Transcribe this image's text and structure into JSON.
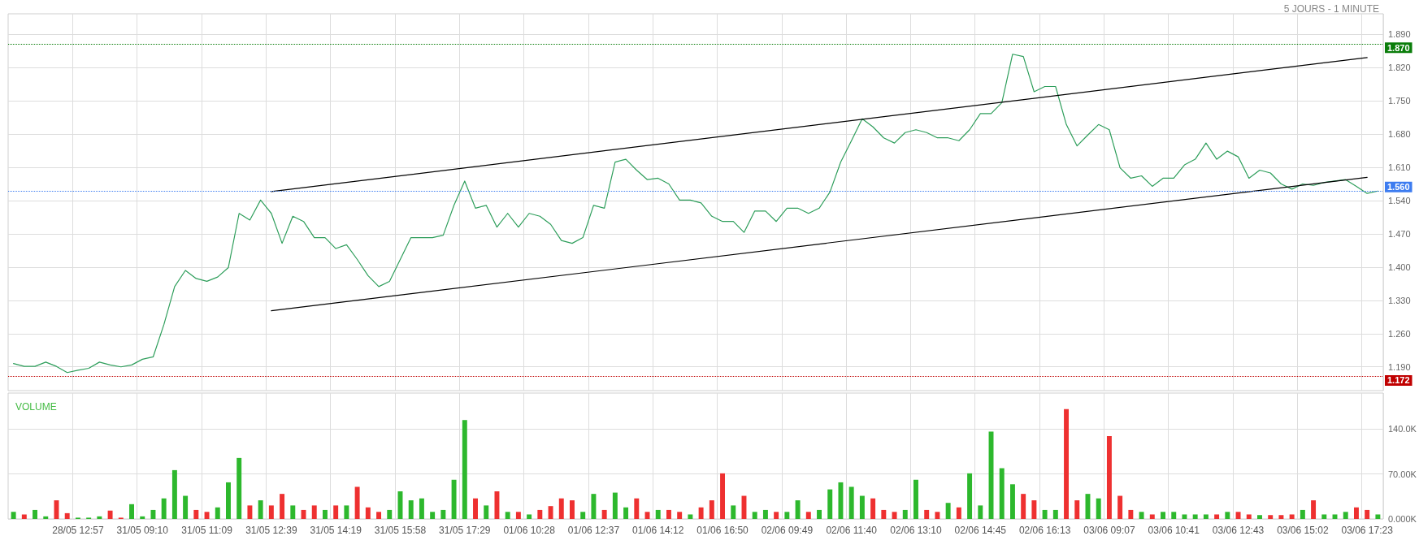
{
  "chart_data": [
    {
      "type": "line",
      "subtitle": "5 JOURS - 1 MINUTE",
      "ylim": [
        1.14,
        1.933
      ],
      "categories": [
        null,
        null,
        null,
        null,
        null,
        null,
        "28/05 12:57",
        null,
        null,
        null,
        null,
        null,
        "31/05 09:10",
        null,
        null,
        null,
        null,
        null,
        "31/05 11:09",
        null,
        null,
        null,
        null,
        null,
        "31/05 12:39",
        null,
        null,
        null,
        null,
        null,
        "31/05 14:19",
        null,
        null,
        null,
        null,
        null,
        "31/05 15:58",
        null,
        null,
        null,
        null,
        null,
        "31/05 17:29",
        null,
        null,
        null,
        null,
        null,
        "01/06 10:28",
        null,
        null,
        null,
        null,
        null,
        "01/06 12:37",
        null,
        null,
        null,
        null,
        null,
        "01/06 14:12",
        null,
        null,
        null,
        null,
        null,
        "01/06 16:50",
        null,
        null,
        null,
        null,
        null,
        "02/06 09:49",
        null,
        null,
        null,
        null,
        null,
        "02/06 11:40",
        null,
        null,
        null,
        null,
        null,
        "02/06 13:10",
        null,
        null,
        null,
        null,
        null,
        "02/06 14:45",
        null,
        null,
        null,
        null,
        null,
        "02/06 16:13",
        null,
        null,
        null,
        null,
        null,
        "03/06 09:07",
        null,
        null,
        null,
        null,
        null,
        "03/06 10:41",
        null,
        null,
        null,
        null,
        null,
        "03/06 12:43",
        null,
        null,
        null,
        null,
        null,
        "03/06 15:02",
        null,
        null,
        null,
        null,
        null,
        "03/06 17:23",
        null
      ],
      "yticks": [
        {
          "value": 1.19,
          "label": "1.190"
        },
        {
          "value": 1.26,
          "label": "1.260"
        },
        {
          "value": 1.33,
          "label": "1.330"
        },
        {
          "value": 1.4,
          "label": "1.400"
        },
        {
          "value": 1.47,
          "label": "1.470"
        },
        {
          "value": 1.54,
          "label": "1.540"
        },
        {
          "value": 1.61,
          "label": "1.610"
        },
        {
          "value": 1.68,
          "label": "1.680"
        },
        {
          "value": 1.75,
          "label": "1.750"
        },
        {
          "value": 1.82,
          "label": "1.820"
        },
        {
          "value": 1.89,
          "label": "1.890"
        }
      ],
      "tick_labels": "y",
      "grid": true,
      "series": [
        {
          "color": "#2e9e5b",
          "values": [
            1.197,
            1.191,
            1.191,
            1.2,
            1.191,
            1.178,
            1.183,
            1.187,
            1.2,
            1.194,
            1.19,
            1.194,
            1.206,
            1.211,
            1.279,
            1.359,
            1.393,
            1.376,
            1.37,
            1.379,
            1.399,
            1.513,
            1.499,
            1.541,
            1.513,
            1.45,
            1.507,
            1.496,
            1.462,
            1.462,
            1.439,
            1.447,
            1.416,
            1.382,
            1.359,
            1.37,
            1.416,
            1.462,
            1.462,
            1.462,
            1.467,
            1.53,
            1.581,
            1.524,
            1.53,
            1.484,
            1.513,
            1.484,
            1.513,
            1.507,
            1.49,
            1.456,
            1.45,
            1.462,
            1.53,
            1.524,
            1.621,
            1.627,
            1.604,
            1.584,
            1.587,
            1.575,
            1.541,
            1.541,
            1.535,
            1.507,
            1.496,
            1.496,
            1.473,
            1.518,
            1.518,
            1.496,
            1.524,
            1.524,
            1.513,
            1.524,
            1.558,
            1.621,
            1.666,
            1.712,
            1.695,
            1.672,
            1.661,
            1.683,
            1.689,
            1.683,
            1.672,
            1.672,
            1.666,
            1.689,
            1.723,
            1.723,
            1.746,
            1.848,
            1.843,
            1.769,
            1.78,
            1.78,
            1.7,
            1.655,
            1.678,
            1.7,
            1.689,
            1.609,
            1.587,
            1.592,
            1.57,
            1.587,
            1.587,
            1.615,
            1.627,
            1.661,
            1.627,
            1.644,
            1.632,
            1.587,
            1.604,
            1.598,
            1.575,
            1.564,
            1.575,
            1.572,
            1.578,
            1.581,
            1.584,
            1.57,
            1.555,
            1.56
          ]
        },
        {
          "color": "#000000",
          "x": [
            "31/05 12:39",
            "03/06 17:23"
          ],
          "values": [
            1.559,
            1.841
          ]
        },
        {
          "color": "#000000",
          "x": [
            "31/05 12:39",
            "03/06 17:23"
          ],
          "values": [
            1.308,
            1.589
          ]
        }
      ],
      "ref_lines": [
        {
          "axis": "y",
          "value": 1.87,
          "label": "1.870",
          "color": "#0a7d0a",
          "line_style": "dotted"
        },
        {
          "axis": "y",
          "value": 1.56,
          "label": "1.560",
          "color": "#3d7cf0",
          "line_style": "dotted"
        },
        {
          "axis": "y",
          "value": 1.172,
          "label": "1.172",
          "color": "#c00000",
          "line_style": "dotted"
        }
      ]
    },
    {
      "type": "bar",
      "title": "VOLUME",
      "ylim": [
        0,
        196000
      ],
      "categories": [
        null,
        null,
        null,
        null,
        null,
        null,
        "28/05 12:57",
        null,
        null,
        null,
        null,
        null,
        "31/05 09:10",
        null,
        null,
        null,
        null,
        null,
        "31/05 11:09",
        null,
        null,
        null,
        null,
        null,
        "31/05 12:39",
        null,
        null,
        null,
        null,
        null,
        "31/05 14:19",
        null,
        null,
        null,
        null,
        null,
        "31/05 15:58",
        null,
        null,
        null,
        null,
        null,
        "31/05 17:29",
        null,
        null,
        null,
        null,
        null,
        "01/06 10:28",
        null,
        null,
        null,
        null,
        null,
        "01/06 12:37",
        null,
        null,
        null,
        null,
        null,
        "01/06 14:12",
        null,
        null,
        null,
        null,
        null,
        "01/06 16:50",
        null,
        null,
        null,
        null,
        null,
        "02/06 09:49",
        null,
        null,
        null,
        null,
        null,
        "02/06 11:40",
        null,
        null,
        null,
        null,
        null,
        "02/06 13:10",
        null,
        null,
        null,
        null,
        null,
        "02/06 14:45",
        null,
        null,
        null,
        null,
        null,
        "02/06 16:13",
        null,
        null,
        null,
        null,
        null,
        "03/06 09:07",
        null,
        null,
        null,
        null,
        null,
        "03/06 10:41",
        null,
        null,
        null,
        null,
        null,
        "03/06 12:43",
        null,
        null,
        null,
        null,
        null,
        "03/06 15:02",
        null,
        null,
        null,
        null,
        null,
        "03/06 17:23",
        null
      ],
      "yticks": [
        {
          "value": 0,
          "label": "0.000K"
        },
        {
          "value": 70000,
          "label": "70.00K"
        },
        {
          "value": 140000,
          "label": "140.0K"
        }
      ],
      "grid": true,
      "values": [
        11000,
        7000,
        14000,
        4000,
        29000,
        9000,
        2000,
        2000,
        4000,
        13000,
        2000,
        23000,
        4000,
        14000,
        32000,
        76000,
        36000,
        14000,
        11000,
        18000,
        57000,
        95000,
        21000,
        29000,
        21000,
        39000,
        21000,
        14000,
        21000,
        14000,
        21000,
        21000,
        50000,
        18000,
        11000,
        14000,
        43000,
        29000,
        32000,
        11000,
        14000,
        61000,
        154000,
        32000,
        21000,
        43000,
        11000,
        11000,
        7000,
        14000,
        20000,
        32000,
        29000,
        11000,
        39000,
        14000,
        41000,
        18000,
        32000,
        11000,
        14000,
        14000,
        11000,
        7000,
        18000,
        29000,
        71000,
        21000,
        36000,
        11000,
        14000,
        11000,
        11000,
        29000,
        11000,
        14000,
        46000,
        57000,
        50000,
        36000,
        32000,
        14000,
        11000,
        14000,
        61000,
        14000,
        11000,
        25000,
        18000,
        71000,
        21000,
        136000,
        79000,
        54000,
        39000,
        29000,
        14000,
        14000,
        171000,
        29000,
        39000,
        32000,
        129000,
        36000,
        14000,
        11000,
        7000,
        11000,
        11000,
        7000,
        7000,
        7000,
        7000,
        11000,
        11000,
        7000,
        6000,
        6000,
        6000,
        7000,
        14000,
        29000,
        7000,
        7000,
        11000,
        18000,
        14000,
        7000
      ],
      "colors": [
        "#2db82d",
        "#ee3030",
        "#2db82d",
        "#2db82d",
        "#ee3030",
        "#ee3030",
        "#2db82d",
        "#2db82d",
        "#2db82d",
        "#ee3030",
        "#ee3030",
        "#2db82d",
        "#2db82d",
        "#2db82d",
        "#2db82d",
        "#2db82d",
        "#2db82d",
        "#ee3030",
        "#ee3030",
        "#2db82d",
        "#2db82d",
        "#2db82d",
        "#ee3030",
        "#2db82d",
        "#ee3030",
        "#ee3030",
        "#2db82d",
        "#ee3030",
        "#ee3030",
        "#2db82d",
        "#ee3030",
        "#2db82d",
        "#ee3030",
        "#ee3030",
        "#ee3030",
        "#2db82d",
        "#2db82d",
        "#2db82d",
        "#2db82d",
        "#2db82d",
        "#2db82d",
        "#2db82d",
        "#2db82d",
        "#ee3030",
        "#2db82d",
        "#ee3030",
        "#2db82d",
        "#ee3030",
        "#2db82d",
        "#ee3030",
        "#ee3030",
        "#ee3030",
        "#ee3030",
        "#2db82d",
        "#2db82d",
        "#ee3030",
        "#2db82d",
        "#2db82d",
        "#ee3030",
        "#ee3030",
        "#2db82d",
        "#ee3030",
        "#ee3030",
        "#2db82d",
        "#ee3030",
        "#ee3030",
        "#ee3030",
        "#2db82d",
        "#ee3030",
        "#2db82d",
        "#2db82d",
        "#ee3030",
        "#2db82d",
        "#2db82d",
        "#ee3030",
        "#2db82d",
        "#2db82d",
        "#2db82d",
        "#2db82d",
        "#2db82d",
        "#ee3030",
        "#ee3030",
        "#ee3030",
        "#2db82d",
        "#2db82d",
        "#ee3030",
        "#ee3030",
        "#2db82d",
        "#ee3030",
        "#2db82d",
        "#2db82d",
        "#2db82d",
        "#2db82d",
        "#2db82d",
        "#ee3030",
        "#ee3030",
        "#2db82d",
        "#2db82d",
        "#ee3030",
        "#ee3030",
        "#2db82d",
        "#2db82d",
        "#ee3030",
        "#ee3030",
        "#ee3030",
        "#2db82d",
        "#ee3030",
        "#2db82d",
        "#2db82d",
        "#2db82d",
        "#2db82d",
        "#2db82d",
        "#ee3030",
        "#2db82d",
        "#ee3030",
        "#ee3030",
        "#2db82d",
        "#ee3030",
        "#ee3030",
        "#ee3030",
        "#2db82d",
        "#ee3030",
        "#2db82d",
        "#2db82d",
        "#2db82d",
        "#ee3030",
        "#ee3030",
        "#2db82d"
      ]
    }
  ]
}
